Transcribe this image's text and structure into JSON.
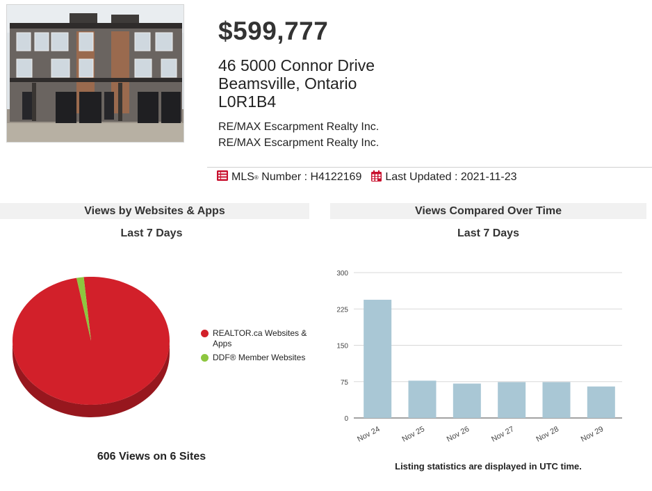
{
  "listing": {
    "price": "$599,777",
    "address_line1": "46 5000 Connor Drive",
    "address_line2": "Beamsville, Ontario",
    "postal_code": "L0R1B4",
    "brokerage_1": "RE/MAX Escarpment Realty Inc.",
    "brokerage_2": "RE/MAX Escarpment Realty Inc.",
    "mls_label": "MLS",
    "mls_reg": "®",
    "mls_suffix": " Number : ",
    "mls_number": "H4122169",
    "updated_label": "Last Updated : ",
    "updated_date": "2021-11-23"
  },
  "colors": {
    "brand_red": "#c8102e",
    "pie_red": "#d2202a",
    "pie_green": "#8dc63f",
    "bar_blue": "#a9c7d5"
  },
  "panels": {
    "left_title": "Views by Websites & Apps",
    "left_subtitle": "Last 7 Days",
    "right_title": "Views Compared Over Time",
    "right_subtitle": "Last 7 Days",
    "left_footer": "606 Views on 6 Sites",
    "right_footer": "Listing statistics are displayed in UTC time."
  },
  "chart_data": [
    {
      "type": "pie",
      "style": "3d",
      "categories": [
        "REALTOR.ca Websites & Apps",
        "DDF® Member Websites"
      ],
      "values": [
        597,
        9
      ],
      "colors": [
        "#d2202a",
        "#8dc63f"
      ],
      "legend_position": "right"
    },
    {
      "type": "bar",
      "categories": [
        "Nov 24",
        "Nov 25",
        "Nov 26",
        "Nov 27",
        "Nov 28",
        "Nov 29"
      ],
      "values": [
        244,
        77,
        71,
        74,
        74,
        65
      ],
      "ylim": [
        0,
        300
      ],
      "yticks": [
        "0",
        "75",
        "150",
        "225",
        "300"
      ],
      "grid": true,
      "color": "#a9c7d5"
    }
  ]
}
